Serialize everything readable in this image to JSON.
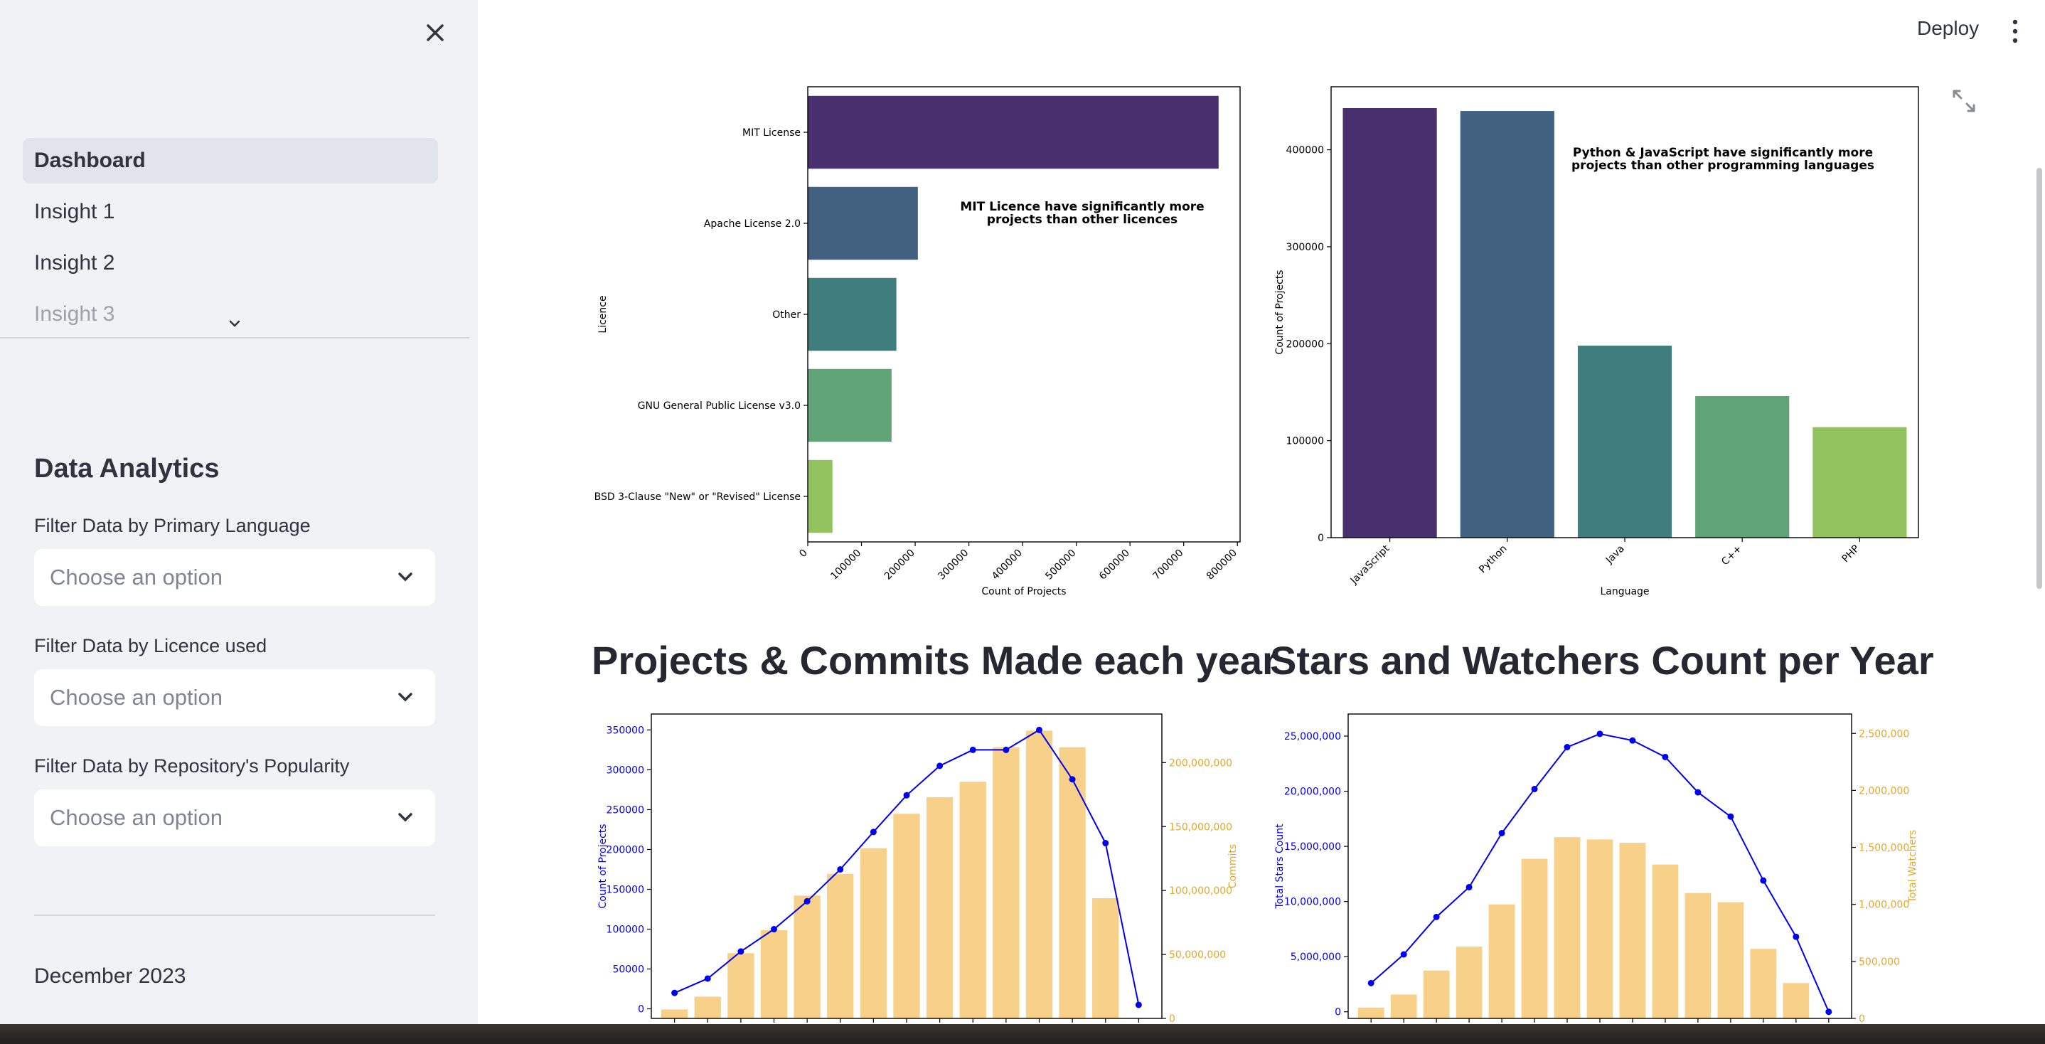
{
  "sidebar": {
    "nav": [
      "Dashboard",
      "Insight 1",
      "Insight 2",
      "Insight 3"
    ],
    "heading": "Data Analytics",
    "filters": [
      {
        "label": "Filter Data by Primary Language",
        "placeholder": "Choose an option"
      },
      {
        "label": "Filter Data by Licence used",
        "placeholder": "Choose an option"
      },
      {
        "label": "Filter Data by Repository's Popularity",
        "placeholder": "Choose an option"
      }
    ],
    "footer": "December 2023"
  },
  "header": {
    "deploy": "Deploy"
  },
  "main": {
    "section1_title": "Projects & Commits Made each year",
    "section2_title": "Stars and Watchers Count per Year"
  },
  "chart_data": [
    {
      "type": "bar",
      "orientation": "horizontal",
      "categories": [
        "MIT License",
        "Apache License 2.0",
        "Other",
        "GNU General Public License v3.0",
        "BSD 3-Clause \"New\" or \"Revised\" License"
      ],
      "values": [
        765000,
        205000,
        165000,
        156000,
        46000
      ],
      "xlabel": "Count of Projects",
      "ylabel": "Licence",
      "xlim": [
        0,
        805000
      ],
      "xticks": [
        0,
        100000,
        200000,
        300000,
        400000,
        500000,
        600000,
        700000,
        800000
      ],
      "annotation": [
        "MIT Licence have significantly more",
        "projects than other licences"
      ],
      "colors": [
        "#482f6e",
        "#42607f",
        "#3f7e7c",
        "#5fa377",
        "#93c35e"
      ]
    },
    {
      "type": "bar",
      "categories": [
        "JavaScript",
        "Python",
        "Java",
        "C++",
        "PHP"
      ],
      "values": [
        443000,
        440000,
        198000,
        146000,
        114000
      ],
      "xlabel": "Language",
      "ylabel": "Count of Projects",
      "ylim": [
        0,
        465000
      ],
      "yticks": [
        0,
        100000,
        200000,
        300000,
        400000
      ],
      "annotation": [
        "Python & JavaScript have significantly more",
        "projects than other programming languages"
      ],
      "colors": [
        "#482f6e",
        "#42607f",
        "#3f7e7c",
        "#5fa377",
        "#93c35e"
      ]
    },
    {
      "type": "bar+line",
      "series": [
        {
          "name": "Count of Projects",
          "axis": "left",
          "kind": "line",
          "color": "#0000ee",
          "values": [
            20000,
            38000,
            72000,
            100000,
            135000,
            175000,
            222000,
            268000,
            305000,
            325000,
            325000,
            350000,
            288000,
            208000,
            5000
          ]
        },
        {
          "name": "Commits",
          "axis": "right",
          "kind": "bar",
          "color": "#f7d08a",
          "values": [
            7000,
            17000,
            51000,
            69000,
            96000,
            113000,
            133000,
            160000,
            173000,
            185000,
            212000,
            225000,
            212000,
            94000,
            0
          ]
        }
      ],
      "ylabel_left": "Count of Projects",
      "ylabel_right": "Commits",
      "ylim_left": [
        -12000,
        370000
      ],
      "ylim_right": [
        0,
        238000000
      ],
      "yticks_left": [
        "0",
        "50000",
        "100000",
        "150000",
        "200000",
        "250000",
        "300000",
        "350000"
      ],
      "yticks_right": [
        "0",
        "50,000,000",
        "100,000,000",
        "150,000,000",
        "200,000,000"
      ],
      "right_scale": 1000
    },
    {
      "type": "bar+line",
      "series": [
        {
          "name": "Total Stars Count",
          "axis": "left",
          "kind": "line",
          "color": "#0000ee",
          "values": [
            2600000,
            5200000,
            8600000,
            11300000,
            16200000,
            20200000,
            24000000,
            25200000,
            24600000,
            23100000,
            19900000,
            17700000,
            11900000,
            6800000,
            0
          ]
        },
        {
          "name": "Total Watchers",
          "axis": "right",
          "kind": "bar",
          "color": "#f7d08a",
          "values": [
            95000,
            210000,
            420000,
            630000,
            1000000,
            1400000,
            1590000,
            1570000,
            1540000,
            1350000,
            1100000,
            1020000,
            610000,
            310000,
            0
          ]
        }
      ],
      "ylabel_left": "Total Stars Count",
      "ylabel_right": "Total Watchers",
      "ylim_left": [
        -600000,
        27000000
      ],
      "ylim_right": [
        0,
        2670000
      ],
      "yticks_left": [
        "0",
        "5,000,000",
        "10,000,000",
        "15,000,000",
        "20,000,000",
        "25,000,000"
      ],
      "yticks_right": [
        "0",
        "500,000",
        "1,000,000",
        "1,500,000",
        "2,000,000",
        "2,500,000"
      ],
      "right_scale": 1
    }
  ]
}
